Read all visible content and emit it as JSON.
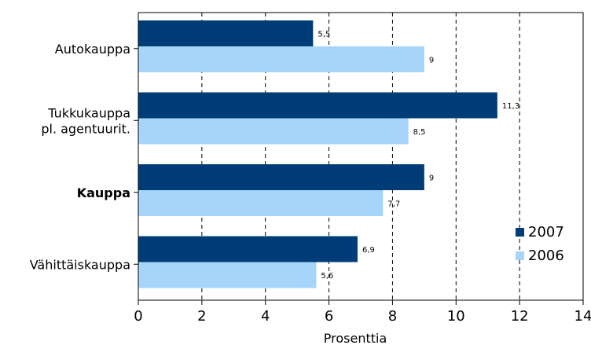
{
  "chart_data": {
    "type": "bar",
    "orientation": "horizontal",
    "categories": [
      {
        "lines": [
          "Autokauppa"
        ],
        "bold": false
      },
      {
        "lines": [
          "Tukkukauppa",
          "pl. agentuurit."
        ],
        "bold": false
      },
      {
        "lines": [
          "Kauppa"
        ],
        "bold": true
      },
      {
        "lines": [
          "Vähittäiskauppa"
        ],
        "bold": false
      }
    ],
    "series": [
      {
        "name": "2007",
        "color": "#003D78",
        "values": [
          5.5,
          11.3,
          9,
          6.9
        ],
        "labels": [
          "5,5",
          "11,3",
          "9",
          "6,9"
        ]
      },
      {
        "name": "2006",
        "color": "#A6D4FA",
        "values": [
          9,
          8.5,
          7.7,
          5.6
        ],
        "labels": [
          "9",
          "8,5",
          "7,7",
          "5,6"
        ]
      }
    ],
    "xlim": [
      0,
      14
    ],
    "xticks": [
      0,
      2,
      4,
      6,
      8,
      10,
      12,
      14
    ],
    "xlabel": "Prosenttia",
    "grid": "vertical-dashed",
    "legend_position": "bottom-right"
  }
}
